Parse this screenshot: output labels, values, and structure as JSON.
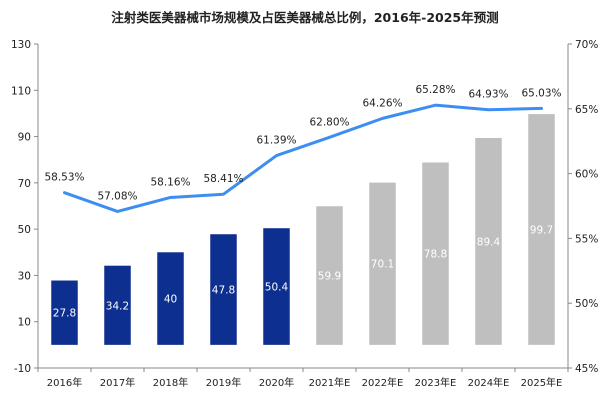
{
  "chart_data": {
    "type": "bar+line",
    "title": "注射类医美器械市场规模及占医美器械总比例，2016年-2025年预测",
    "categories": [
      "2016年",
      "2017年",
      "2018年",
      "2019年",
      "2020年",
      "2021年E",
      "2022年E",
      "2023年E",
      "2024年E",
      "2025年E"
    ],
    "bars": {
      "values": [
        27.8,
        34.2,
        40,
        47.8,
        50.4,
        59.9,
        70.1,
        78.8,
        89.4,
        99.7
      ],
      "labels": [
        "27.8",
        "34.2",
        "40",
        "47.8",
        "50.4",
        "59.9",
        "70.1",
        "78.8",
        "89.4",
        "99.7"
      ],
      "colors": [
        "#0d2f8f",
        "#0d2f8f",
        "#0d2f8f",
        "#0d2f8f",
        "#0d2f8f",
        "#bfbfbf",
        "#bfbfbf",
        "#bfbfbf",
        "#bfbfbf",
        "#bfbfbf"
      ],
      "label_colors": [
        "#ffffff",
        "#ffffff",
        "#ffffff",
        "#ffffff",
        "#ffffff",
        "#ffffff",
        "#ffffff",
        "#ffffff",
        "#ffffff",
        "#ffffff"
      ]
    },
    "line": {
      "values": [
        58.53,
        57.08,
        58.16,
        58.41,
        61.39,
        62.8,
        64.26,
        65.28,
        64.93,
        65.03
      ],
      "labels": [
        "58.53%",
        "57.08%",
        "58.16%",
        "58.41%",
        "61.39%",
        "62.80%",
        "64.26%",
        "65.28%",
        "64.93%",
        "65.03%"
      ],
      "color": "#3d8ef0"
    },
    "y_left": {
      "min": -10,
      "max": 130,
      "ticks": [
        "130",
        "110",
        "90",
        "70",
        "50",
        "30",
        "10",
        "-10"
      ],
      "tick_values": [
        130,
        110,
        90,
        70,
        50,
        30,
        10,
        -10
      ]
    },
    "y_right": {
      "min": 45,
      "max": 70,
      "ticks": [
        "70%",
        "65%",
        "60%",
        "55%",
        "50%",
        "45%"
      ],
      "tick_values": [
        70,
        65,
        60,
        55,
        50,
        45
      ]
    },
    "grid": false,
    "legend": "none"
  }
}
